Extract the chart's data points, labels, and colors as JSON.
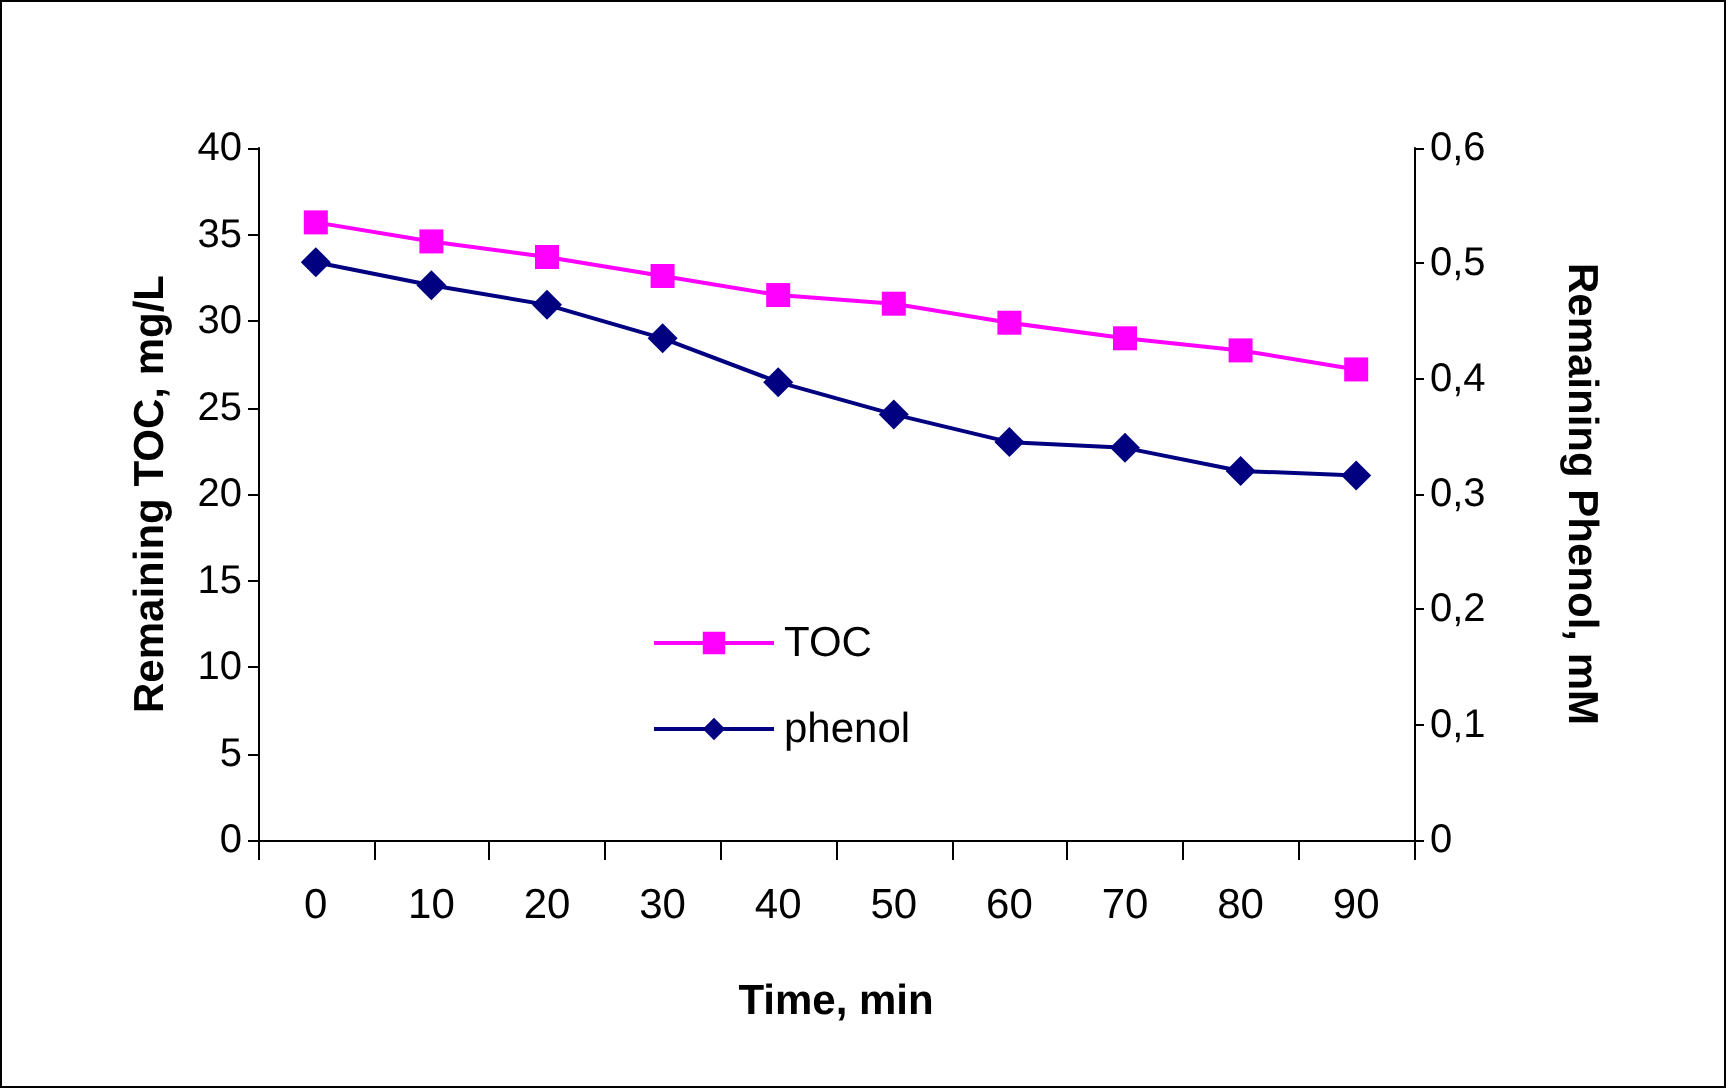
{
  "chart_data": {
    "type": "line",
    "xlabel": "Time, min",
    "ylabel": "Remaining TOC, mg/L",
    "y2label": "Remaining Phenol, mM",
    "categories": [
      "0",
      "10",
      "20",
      "30",
      "40",
      "50",
      "60",
      "70",
      "80",
      "90"
    ],
    "series": [
      {
        "name": "TOC",
        "color": "#ff00ff",
        "marker": "square",
        "values": [
          35.7,
          34.6,
          33.7,
          32.6,
          31.5,
          31.0,
          29.9,
          29.0,
          28.3,
          27.2
        ]
      },
      {
        "name": "phenol",
        "color": "#000080",
        "marker": "diamond",
        "axis": "y2",
        "values": [
          0.501,
          0.481,
          0.464,
          0.435,
          0.397,
          0.369,
          0.345,
          0.34,
          0.32,
          0.316
        ]
      }
    ],
    "ylim": [
      0,
      40
    ],
    "yticks": [
      0,
      5,
      10,
      15,
      20,
      25,
      30,
      35,
      40
    ],
    "y2lim": [
      0,
      0.6
    ],
    "y2ticks": [
      {
        "value": 0,
        "label": "0"
      },
      {
        "value": 0.1,
        "label": "0,1"
      },
      {
        "value": 0.2,
        "label": "0,2"
      },
      {
        "value": 0.3,
        "label": "0,3"
      },
      {
        "value": 0.4,
        "label": "0,4"
      },
      {
        "value": 0.5,
        "label": "0,5"
      },
      {
        "value": 0.6,
        "label": "0,6"
      }
    ],
    "grid": false,
    "legend": "bottom",
    "line_style": "solid"
  }
}
